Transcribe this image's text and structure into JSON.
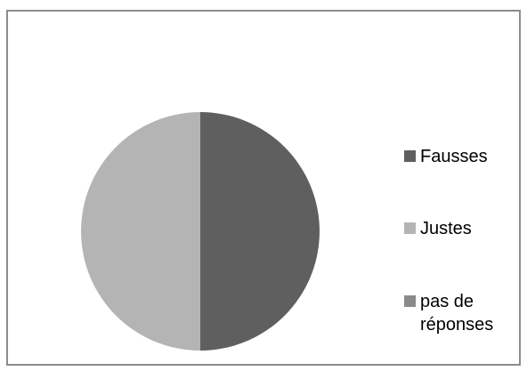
{
  "chart_data": {
    "type": "pie",
    "title": "",
    "series": [
      {
        "label": "Fausses",
        "value": 50,
        "color": "#5f5f5f"
      },
      {
        "label": "Justes",
        "value": 50,
        "color": "#b4b4b4"
      },
      {
        "label": "pas de réponses",
        "value": 0,
        "color": "#8a8a8a"
      }
    ],
    "legend_position": "right"
  },
  "legend": {
    "items": [
      {
        "label": "Fausses"
      },
      {
        "label": "Justes"
      },
      {
        "label": "pas de réponses"
      }
    ]
  }
}
